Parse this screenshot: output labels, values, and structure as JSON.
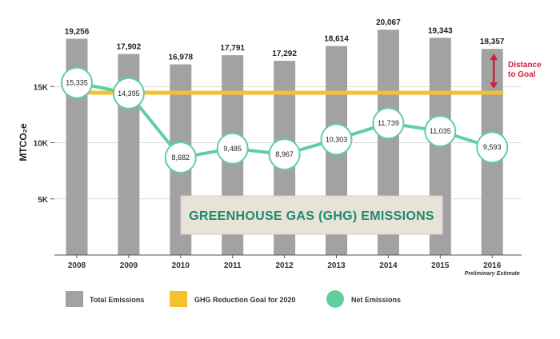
{
  "chart_data": {
    "type": "bar",
    "title": "GREENHOUSE GAS (GHG) EMISSIONS",
    "ylabel": "MTCO₂e",
    "ylim": [
      0,
      21000
    ],
    "yticks": [
      5000,
      10000,
      15000
    ],
    "ytick_labels": [
      "5K",
      "10K",
      "15K"
    ],
    "grid": true,
    "categories": [
      "2008",
      "2009",
      "2010",
      "2011",
      "2012",
      "2013",
      "2014",
      "2015",
      "2016"
    ],
    "category_sublabels": {
      "2016": "Preliminary Estimate"
    },
    "series": [
      {
        "name": "Total Emissions",
        "type": "bar",
        "values": [
          19256,
          17902,
          16978,
          17791,
          17292,
          18614,
          20067,
          19343,
          18357
        ],
        "labels": [
          "19,256",
          "17,902",
          "16,978",
          "17,791",
          "17,292",
          "18,614",
          "20,067",
          "19,343",
          "18,357"
        ]
      },
      {
        "name": "GHG Reduction Goal for 2020",
        "type": "hline",
        "value": 14450
      },
      {
        "name": "Net Emissions",
        "type": "line",
        "values": [
          15335,
          14395,
          8682,
          9485,
          8967,
          10303,
          11739,
          11035,
          9593
        ],
        "labels": [
          "15,335",
          "14,395",
          "8,682",
          "9,485",
          "8,967",
          "10,303",
          "11,739",
          "11,035",
          "9,593"
        ]
      }
    ],
    "annotation": {
      "text_lines": [
        "Distance",
        "to Goal"
      ],
      "category": "2016"
    },
    "legend_position": "bottom",
    "colors": {
      "bar": "#a3a2a2",
      "goal": "#f6c12e",
      "net": "#5fcf9f",
      "net_marker_fill": "#ffffff",
      "annotation": "#d01f3c",
      "title_box": "#e8e3d9",
      "title_text": "#1f8a6c"
    }
  }
}
